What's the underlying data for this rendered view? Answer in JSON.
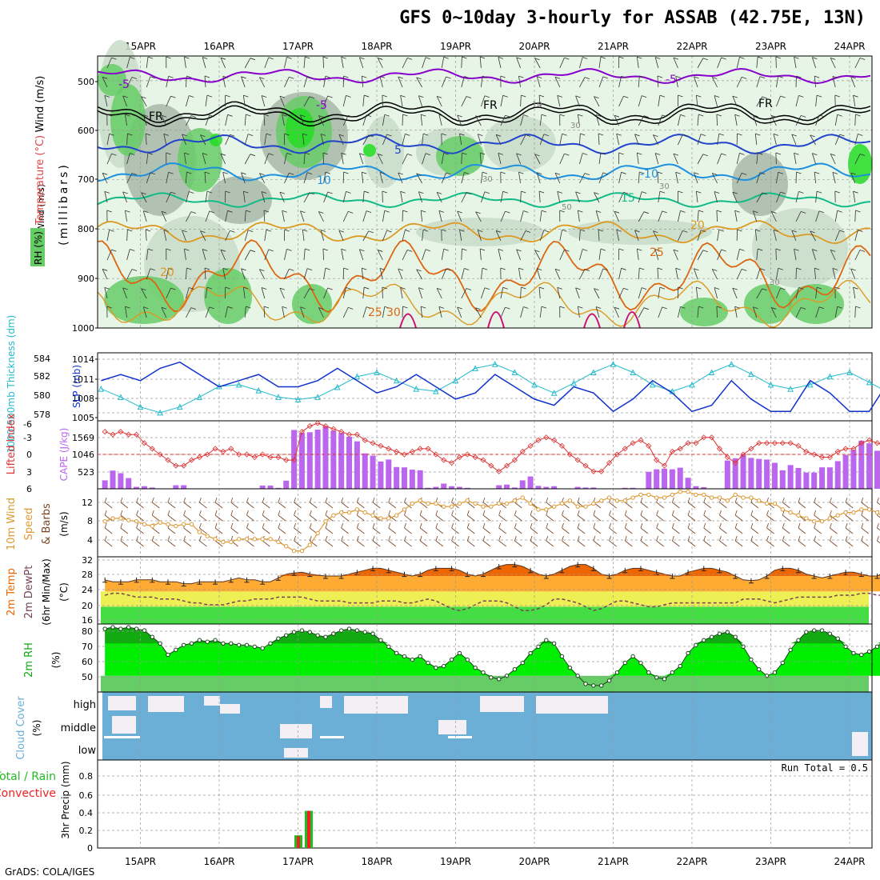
{
  "title": "GFS 0~10day 3-hourly for ASSAB (42.75E, 13N)",
  "footer": "GrADS: COLA/IGES",
  "dates": [
    "15APR",
    "16APR",
    "17APR",
    "18APR",
    "19APR",
    "20APR",
    "21APR",
    "22APR",
    "23APR",
    "24APR"
  ],
  "colors": {
    "rh_light": "#e6f5e6",
    "rh_mid": "#c8dcc8",
    "rh_gray": "#a8b8a8",
    "rh_green": "#66cc66",
    "rh_bright": "#22dd22",
    "temp_m5": "#8800cc",
    "temp_fr": "#000000",
    "temp_5": "#2244cc",
    "temp_10": "#1e90dd",
    "temp_15": "#11bb88",
    "temp_20": "#dd9922",
    "temp_25": "#dd6611",
    "temp_30": "#cc1177",
    "slp": "#1133cc",
    "thickness": "#22bbcc",
    "cape": "#bb66ee",
    "li": "#dd3333",
    "wind10": "#dd9933",
    "barb": "#7a4422",
    "temp_hot": "#ee6600",
    "temp_warm": "#ffaa33",
    "temp_yellow": "#eeee55",
    "temp_green": "#44dd44",
    "rh_dark": "#11aa11",
    "rh_fill": "#00ee00",
    "rh_low": "#66cc66",
    "cloud_blue": "#6baed6",
    "cloud_white": "#f4eff4",
    "cloud_gray": "#cccccc",
    "precip_green": "#22bb22",
    "precip_red": "#ee2222"
  },
  "panels": {
    "upper": {
      "side_labels": [
        "Wind (m/s)",
        "Temperature (°C)",
        "RH (%)"
      ],
      "ylabel": "(millibars)",
      "ticks": [
        "500",
        "600",
        "700",
        "800",
        "900",
        "1000"
      ],
      "contour_labels": [
        "-5",
        "-5",
        "FR",
        "FR",
        "FR",
        "-5",
        "5",
        "-10",
        "10",
        "10",
        "15",
        "20",
        "20",
        "25",
        "25",
        "30",
        "30",
        "30",
        "30",
        "30",
        "30"
      ]
    },
    "slp": {
      "label_left": "1000-500mb Thickness (dm)",
      "label_right": "SLP (mb)",
      "left_ticks": [
        "584",
        "582",
        "580",
        "578"
      ],
      "right_ticks": [
        "1014",
        "1011",
        "1008",
        "1005"
      ]
    },
    "cape": {
      "label_left": "Lifted Index",
      "label_right": "CAPE (J/kg)",
      "left_ticks": [
        "-6",
        "-3",
        "0",
        "3",
        "6"
      ],
      "right_ticks": [
        "1569",
        "1046",
        "523"
      ]
    },
    "wind": {
      "label": "10m Wind Speed & Barbs",
      "unit": "(m/s)",
      "ticks": [
        "12",
        "8",
        "4"
      ]
    },
    "t2m": {
      "label": "2m Temp 2m DewPt (6hr Min/Max)",
      "unit": "(°C)",
      "ticks": [
        "32",
        "28",
        "24",
        "20",
        "16"
      ]
    },
    "rh2m": {
      "label": "2m RH",
      "unit": "(%)",
      "ticks": [
        "80",
        "70",
        "60",
        "50"
      ]
    },
    "cloud": {
      "label": "Cloud Cover (%)",
      "levels": [
        "high",
        "middle",
        "low"
      ]
    },
    "precip": {
      "label_a": "Total / Rain",
      "label_b": "Convective",
      "ylabel": "3hr Precip (mm)",
      "ticks": [
        "0.8",
        "0.6",
        "0.4",
        "0.2",
        "0"
      ],
      "run_total": "Run Total = 0.5"
    }
  },
  "chart_data": [
    {
      "type": "line",
      "name": "SLP (mb)",
      "x_start": "14APR 12Z",
      "x_step_hours": 6,
      "ylim": [
        1005,
        1015
      ],
      "values": [
        1011,
        1012,
        1011,
        1013,
        1014,
        1012,
        1010,
        1011,
        1012,
        1010,
        1010,
        1011,
        1013,
        1011,
        1009,
        1010,
        1012,
        1010,
        1008,
        1009,
        1012,
        1010,
        1008,
        1007,
        1010,
        1009,
        1006,
        1008,
        1011,
        1009,
        1006,
        1007,
        1011,
        1008,
        1006,
        1006,
        1011,
        1009,
        1006,
        1006,
        1011,
        1010,
        1007,
        1006,
        1012,
        1011,
        1009,
        1009
      ]
    },
    {
      "type": "line",
      "name": "1000-500mb Thickness (dm)",
      "ylim": [
        577,
        584.5
      ],
      "values": [
        580.5,
        579.5,
        578.3,
        577.6,
        578.3,
        579.5,
        580.8,
        581,
        580.3,
        579.5,
        579.2,
        579.5,
        580.7,
        582,
        582.5,
        581.5,
        580.5,
        580.2,
        581.5,
        583,
        583.5,
        582.5,
        581,
        580,
        581.2,
        582.5,
        583.5,
        582.5,
        581,
        580.2,
        581,
        582.5,
        583.5,
        582.3,
        581,
        580.5,
        581,
        582,
        582.5,
        581.3,
        580,
        579,
        578.8,
        579.3,
        580.5,
        579.5,
        578.5,
        579.5
      ]
    },
    {
      "type": "bar",
      "name": "CAPE (J/kg)",
      "ylim": [
        0,
        2092
      ],
      "values": [
        260,
        560,
        480,
        330,
        60,
        80,
        40,
        0,
        10,
        110,
        110,
        0,
        0,
        0,
        0,
        0,
        0,
        0,
        0,
        0,
        100,
        100,
        30,
        250,
        1810,
        1720,
        1740,
        1820,
        1920,
        1790,
        1720,
        1600,
        1460,
        1090,
        1020,
        840,
        900,
        670,
        660,
        590,
        570,
        30,
        60,
        160,
        80,
        60,
        30,
        0,
        0,
        0,
        110,
        130,
        40,
        260,
        380,
        90,
        60,
        80,
        0,
        0,
        60,
        40,
        40,
        0,
        0,
        0,
        30,
        30,
        0,
        520,
        600,
        620,
        600,
        650,
        340,
        80,
        50,
        10,
        0,
        870,
        940,
        1040,
        950,
        920,
        900,
        800,
        570,
        730,
        640,
        500,
        500,
        660,
        660,
        850,
        1040,
        1200,
        1480,
        1400,
        1170,
        900
      ]
    },
    {
      "type": "line",
      "name": "Lifted Index",
      "ylim": [
        6,
        -6
      ],
      "values": [
        -4,
        -3.5,
        -4,
        -3.5,
        -3.5,
        -2,
        -1,
        0,
        1,
        2,
        2,
        1,
        0.5,
        0,
        -1,
        -0.5,
        -1,
        0,
        0,
        0.5,
        0,
        0.5,
        0.5,
        1,
        1,
        -4,
        -5,
        -5.5,
        -5,
        -4.5,
        -4,
        -3.5,
        -3.5,
        -2.5,
        -2,
        -1.5,
        -1,
        -0.5,
        0,
        -0.5,
        -1,
        -1,
        0,
        1,
        1.5,
        0.5,
        0,
        0.5,
        1,
        2,
        3,
        2,
        1,
        -0.5,
        -1.5,
        -2.5,
        -3,
        -2.5,
        -1.5,
        0,
        1,
        2,
        3,
        3,
        1.5,
        0,
        -1,
        -2,
        -2.5,
        -1.5,
        1,
        2,
        -0.5,
        -1,
        -2,
        -2,
        -3,
        -3,
        -1,
        0.5,
        1.5,
        0,
        -1,
        -2,
        -2,
        -2,
        -2,
        -2,
        -1.5,
        -0.5,
        0,
        0.5,
        0.5,
        -0.5,
        -1,
        -1,
        -2,
        -2.5,
        -2,
        -1.5,
        -1.5,
        -1
      ]
    },
    {
      "type": "line",
      "name": "10m Wind Speed (m/s)",
      "ylim": [
        2,
        13.5
      ],
      "values": [
        8,
        8.5,
        8.5,
        8.2,
        8,
        7.5,
        7.2,
        7.8,
        7.5,
        7.2,
        7.5,
        7.5,
        6.2,
        5.5,
        5,
        4.5,
        4.5,
        5,
        5,
        5,
        5,
        5,
        4.5,
        3.8,
        3,
        3,
        4,
        6,
        8,
        9,
        9.5,
        9.5,
        10,
        9.5,
        9,
        8.5,
        8.5,
        9,
        10,
        11,
        11.5,
        11,
        11,
        10.5,
        10.5,
        11,
        11.5,
        11,
        10.5,
        10.5,
        11,
        11,
        11.5,
        12,
        11,
        10,
        10,
        10.5,
        11,
        11.5,
        10.5,
        10.5,
        11,
        11.5,
        12,
        11.5,
        11.5,
        12,
        12.5,
        12.5,
        12,
        12,
        12.5,
        13,
        13,
        12.5,
        12.5,
        12,
        12,
        11.5,
        12.5,
        12,
        12,
        11.5,
        11,
        11,
        10,
        9.5,
        9,
        8.5,
        8,
        8,
        8.5,
        9,
        9.5,
        9.5,
        10,
        10,
        9.5,
        8.5,
        9.5,
        10.5
      ]
    },
    {
      "type": "area",
      "name": "2m Temp (°C)",
      "ylim": [
        15.5,
        33
      ],
      "values": [
        27,
        26.5,
        26.5,
        26.5,
        27,
        27,
        27,
        26.5,
        26.5,
        26.5,
        26,
        26,
        26.5,
        26.5,
        26.5,
        26.5,
        27,
        27.5,
        27,
        27,
        26.5,
        26.5,
        27.5,
        28.5,
        28.8,
        29,
        28.5,
        28.2,
        28,
        28,
        28,
        28.5,
        29,
        29.5,
        30,
        30,
        29.5,
        29,
        28.5,
        28,
        28.5,
        29.5,
        30,
        30,
        30,
        29.5,
        28.5,
        28,
        28.5,
        29.5,
        30.5,
        31,
        31,
        30.5,
        29.5,
        28.5,
        28,
        28.5,
        29.5,
        30.5,
        31,
        31,
        30,
        28.5,
        28,
        28.5,
        29.5,
        30,
        30,
        29.5,
        29,
        28.5,
        28,
        28,
        29,
        29.5,
        30,
        30,
        29.5,
        29,
        28,
        27,
        26.8,
        27,
        28,
        29.5,
        30,
        30,
        29.5,
        28.5,
        28,
        27.5,
        28,
        28.5,
        29,
        29,
        28.5,
        28,
        28,
        29
      ]
    },
    {
      "type": "line",
      "name": "2m DewPt (°C)",
      "ylim": [
        15.5,
        33
      ],
      "values": [
        23,
        23.5,
        23.5,
        23,
        22.5,
        22.5,
        22.5,
        22,
        22,
        22,
        21.5,
        21,
        21,
        20.5,
        20.5,
        20.5,
        21,
        21.5,
        21.5,
        22,
        22,
        22,
        22.5,
        22.5,
        22.5,
        22.5,
        22,
        21.5,
        21.5,
        21.5,
        21.5,
        21,
        21,
        21,
        21,
        21.5,
        21.5,
        21.5,
        21,
        21,
        21.5,
        22,
        21.5,
        20.5,
        19.5,
        19,
        19.5,
        20.5,
        21.5,
        21.5,
        21.5,
        21,
        20,
        19,
        19,
        19.5,
        20.5,
        22,
        22,
        21.5,
        21,
        20,
        19,
        19.5,
        20.5,
        21.5,
        21.5,
        21,
        20.5,
        20,
        20,
        20.5,
        21,
        21,
        21,
        21,
        21,
        21,
        21,
        21,
        21,
        22,
        22,
        22,
        21.5,
        21,
        21.5,
        22,
        22.5,
        22.5,
        22.5,
        22.5,
        22.5,
        23,
        23,
        23,
        23.5,
        23.5,
        23,
        23,
        22.5,
        23.5
      ]
    },
    {
      "type": "area",
      "name": "2m RH (%)",
      "ylim": [
        40,
        82
      ],
      "values": [
        79,
        80,
        79,
        80,
        79,
        78,
        74,
        70,
        63,
        66,
        69,
        70,
        72,
        71,
        72,
        70,
        70,
        69,
        69,
        68,
        67,
        70,
        73,
        75,
        77,
        78,
        77,
        75,
        74,
        76,
        78,
        79,
        78,
        77,
        76,
        72,
        68,
        64,
        62,
        60,
        62,
        58,
        55,
        56,
        60,
        64,
        60,
        55,
        52,
        49,
        48,
        50,
        54,
        58,
        64,
        68,
        72,
        70,
        62,
        55,
        50,
        45,
        44,
        44,
        47,
        52,
        58,
        62,
        58,
        52,
        49,
        48,
        52,
        56,
        64,
        69,
        72,
        74,
        76,
        77,
        74,
        68,
        60,
        54,
        50,
        52,
        58,
        66,
        72,
        77,
        78,
        78,
        76,
        73,
        68,
        64,
        63,
        65,
        68,
        72,
        75,
        77,
        78,
        72,
        64
      ]
    },
    {
      "type": "bar",
      "name": "3hr Precip (mm)",
      "ylim": [
        0,
        0.9
      ],
      "x": [
        "17APR 00Z",
        "17APR 03Z"
      ],
      "total": [
        0.13,
        0.38
      ],
      "convective": [
        0.12,
        0.38
      ]
    }
  ]
}
